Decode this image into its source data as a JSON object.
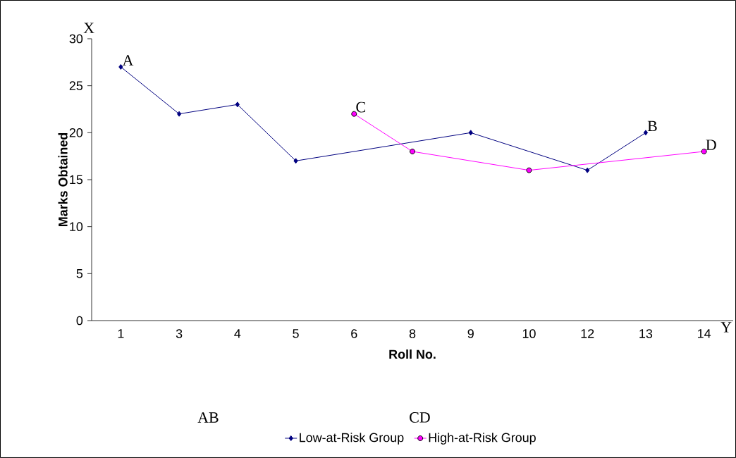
{
  "chart_data": {
    "type": "line",
    "xlabel": "Roll No.",
    "ylabel": "Marks Obtained",
    "categories": [
      "1",
      "3",
      "4",
      "5",
      "6",
      "8",
      "9",
      "10",
      "12",
      "13",
      "14"
    ],
    "series": [
      {
        "name": "Low-at-Risk Group",
        "color": "#000080",
        "marker": "diamond",
        "values": [
          27,
          22,
          23,
          17,
          null,
          null,
          20,
          null,
          16,
          20,
          null
        ]
      },
      {
        "name": "High-at-Risk Group",
        "color": "#ff00ff",
        "marker": "circle",
        "values": [
          null,
          null,
          null,
          null,
          22,
          18,
          null,
          16,
          null,
          null,
          18
        ]
      }
    ],
    "ylim": [
      0,
      30
    ],
    "yticks": [
      0,
      5,
      10,
      15,
      20,
      25,
      30
    ],
    "grid": false,
    "legend": "bottom",
    "annotations": [
      {
        "text": "A",
        "x": "1",
        "y": 27
      },
      {
        "text": "B",
        "x": "13",
        "y": 20
      },
      {
        "text": "C",
        "x": "6",
        "y": 22
      },
      {
        "text": "D",
        "x": "14",
        "y": 18
      },
      "X",
      "Y",
      "AB",
      "CD"
    ]
  }
}
